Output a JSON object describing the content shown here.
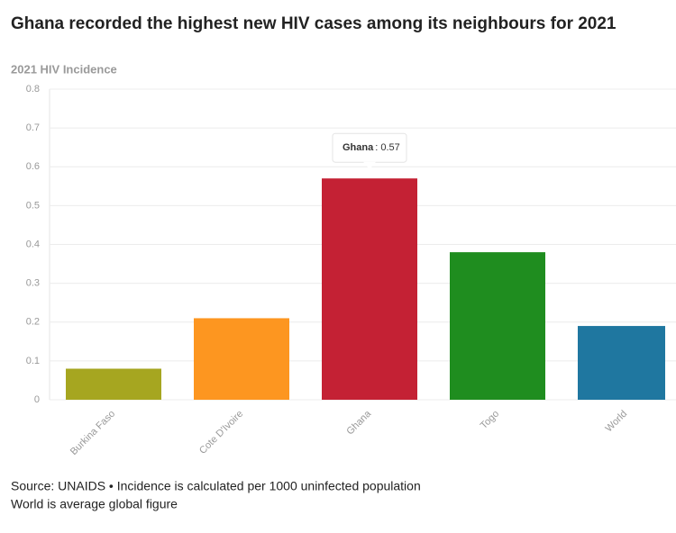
{
  "chart_data": {
    "type": "bar",
    "title": "Ghana recorded the highest new HIV cases among its neighbours for 2021",
    "y_label": "2021 HIV Incidence",
    "categories": [
      "Burkina Faso",
      "Cote D'Ivoire",
      "Ghana",
      "Togo",
      "World"
    ],
    "values": [
      0.08,
      0.21,
      0.57,
      0.38,
      0.19
    ],
    "colors": [
      "#a6a620",
      "#fd9620",
      "#c42134",
      "#1f8d1f",
      "#1f77a0"
    ],
    "ylim": [
      0,
      0.8
    ],
    "yticks": [
      0,
      0.1,
      0.2,
      0.3,
      0.4,
      0.5,
      0.6,
      0.7,
      0.8
    ],
    "grid": true,
    "tooltip": {
      "title": "Ghana",
      "value": ": 0.57"
    },
    "notes": [
      "Source: UNAIDS • Incidence is calculated per 1000 uninfected population",
      "World is average global figure"
    ]
  }
}
